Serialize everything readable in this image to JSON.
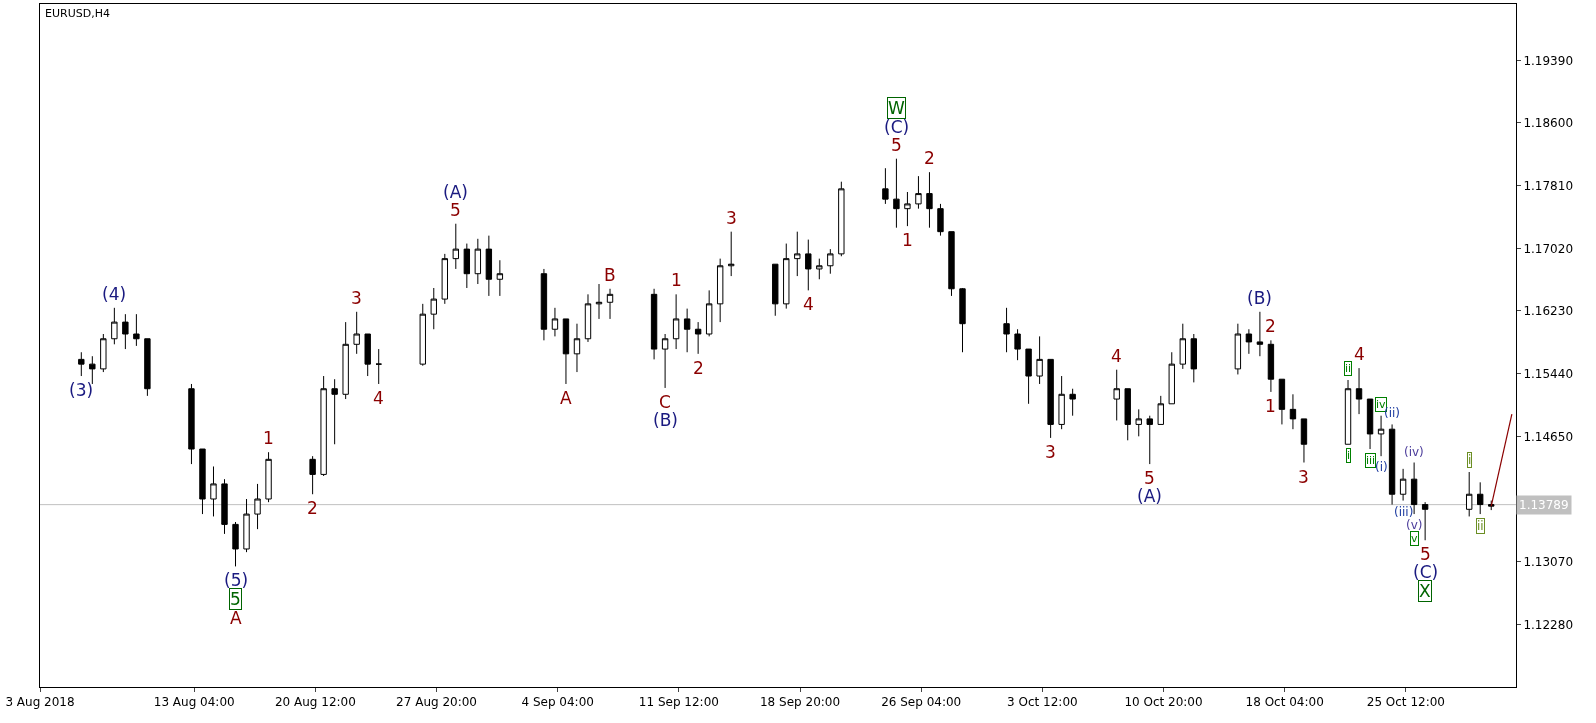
{
  "chart_data": {
    "type": "candlestick",
    "title": "EURUSD,H4",
    "x": [
      "2018-08-06T08:00",
      "2018-08-07T00:00",
      "2018-08-07T16:00",
      "2018-08-08T08:00",
      "2018-08-09T00:00",
      "2018-08-09T16:00",
      "2018-08-10T08:00",
      "2018-08-13T00:00",
      "2018-08-13T16:00",
      "2018-08-14T08:00",
      "2018-08-15T00:00",
      "2018-08-15T16:00",
      "2018-08-16T08:00",
      "2018-08-17T00:00",
      "2018-08-17T16:00",
      "2018-08-20T08:00",
      "2018-08-21T00:00",
      "2018-08-21T16:00",
      "2018-08-22T08:00",
      "2018-08-23T00:00",
      "2018-08-23T16:00",
      "2018-08-24T08:00",
      "2018-08-27T00:00",
      "2018-08-27T16:00",
      "2018-08-28T08:00",
      "2018-08-29T00:00",
      "2018-08-29T16:00",
      "2018-08-30T08:00",
      "2018-08-31T00:00",
      "2018-08-31T16:00",
      "2018-09-03T08:00",
      "2018-09-04T00:00",
      "2018-09-04T16:00",
      "2018-09-05T08:00",
      "2018-09-06T00:00",
      "2018-09-06T16:00",
      "2018-09-07T08:00",
      "2018-09-10T00:00",
      "2018-09-10T16:00",
      "2018-09-11T08:00",
      "2018-09-12T00:00",
      "2018-09-12T16:00",
      "2018-09-13T08:00",
      "2018-09-14T00:00",
      "2018-09-14T16:00",
      "2018-09-17T08:00",
      "2018-09-18T00:00",
      "2018-09-18T16:00",
      "2018-09-19T08:00",
      "2018-09-20T00:00",
      "2018-09-20T16:00",
      "2018-09-21T08:00",
      "2018-09-24T00:00",
      "2018-09-24T16:00",
      "2018-09-25T08:00",
      "2018-09-26T00:00",
      "2018-09-26T16:00",
      "2018-09-27T08:00",
      "2018-09-28T00:00",
      "2018-09-28T16:00",
      "2018-10-01T08:00",
      "2018-10-02T00:00",
      "2018-10-02T16:00",
      "2018-10-03T08:00",
      "2018-10-04T00:00",
      "2018-10-04T16:00",
      "2018-10-05T08:00",
      "2018-10-08T00:00",
      "2018-10-08T16:00",
      "2018-10-09T08:00",
      "2018-10-10T00:00",
      "2018-10-10T16:00",
      "2018-10-11T08:00",
      "2018-10-12T00:00",
      "2018-10-12T16:00",
      "2018-10-15T08:00",
      "2018-10-16T00:00",
      "2018-10-16T16:00",
      "2018-10-17T08:00",
      "2018-10-18T00:00",
      "2018-10-18T16:00",
      "2018-10-19T08:00",
      "2018-10-22T00:00",
      "2018-10-22T16:00",
      "2018-10-23T08:00",
      "2018-10-24T00:00",
      "2018-10-24T16:00",
      "2018-10-25T08:00",
      "2018-10-26T00:00",
      "2018-10-26T16:00",
      "2018-10-29T08:00",
      "2018-10-30T00:00",
      "2018-10-30T16:00"
    ],
    "ohlc": [
      [
        1.1562,
        1.1571,
        1.1541,
        1.1556
      ],
      [
        1.1556,
        1.1566,
        1.1531,
        1.155
      ],
      [
        1.155,
        1.1594,
        1.1546,
        1.1588
      ],
      [
        1.1588,
        1.1627,
        1.1581,
        1.1609
      ],
      [
        1.1609,
        1.1619,
        1.1575,
        1.1594
      ],
      [
        1.1594,
        1.1619,
        1.1579,
        1.1588
      ],
      [
        1.1588,
        1.1588,
        1.1516,
        1.1525
      ],
      [
        1.1525,
        1.1531,
        1.143,
        1.1449
      ],
      [
        1.1449,
        1.1449,
        1.1367,
        1.1386
      ],
      [
        1.1386,
        1.1427,
        1.1364,
        1.1405
      ],
      [
        1.1405,
        1.1411,
        1.1342,
        1.1354
      ],
      [
        1.1354,
        1.1357,
        1.1301,
        1.1323
      ],
      [
        1.1323,
        1.1386,
        1.1319,
        1.1367
      ],
      [
        1.1367,
        1.1405,
        1.1348,
        1.1386
      ],
      [
        1.1386,
        1.1445,
        1.1382,
        1.1436
      ],
      [
        1.1436,
        1.144,
        1.1392,
        1.1417
      ],
      [
        1.1417,
        1.1541,
        1.1415,
        1.1525
      ],
      [
        1.1525,
        1.1537,
        1.1455,
        1.1518
      ],
      [
        1.1518,
        1.1609,
        1.1512,
        1.1581
      ],
      [
        1.1581,
        1.1622,
        1.1569,
        1.1594
      ],
      [
        1.1594,
        1.1594,
        1.1541,
        1.1556
      ],
      [
        1.1556,
        1.1575,
        1.1531,
        1.1556
      ],
      [
        1.1556,
        1.1632,
        1.1554,
        1.1619
      ],
      [
        1.1619,
        1.1652,
        1.16,
        1.1638
      ],
      [
        1.1638,
        1.1695,
        1.1632,
        1.1689
      ],
      [
        1.1689,
        1.1733,
        1.1676,
        1.1701
      ],
      [
        1.1701,
        1.1708,
        1.1652,
        1.167
      ],
      [
        1.167,
        1.1714,
        1.1657,
        1.1701
      ],
      [
        1.1701,
        1.1718,
        1.1642,
        1.1663
      ],
      [
        1.1663,
        1.1687,
        1.1642,
        1.167
      ],
      [
        1.167,
        1.1676,
        1.1586,
        1.16
      ],
      [
        1.16,
        1.1627,
        1.1591,
        1.1613
      ],
      [
        1.1613,
        1.1613,
        1.1531,
        1.1569
      ],
      [
        1.1569,
        1.1607,
        1.1546,
        1.1588
      ],
      [
        1.1588,
        1.1644,
        1.1584,
        1.1632
      ],
      [
        1.1632,
        1.1657,
        1.1613,
        1.1634
      ],
      [
        1.1634,
        1.1651,
        1.1613,
        1.1644
      ],
      [
        1.1644,
        1.1651,
        1.1562,
        1.1575
      ],
      [
        1.1575,
        1.1594,
        1.1526,
        1.1588
      ],
      [
        1.1588,
        1.1644,
        1.1575,
        1.1613
      ],
      [
        1.1613,
        1.1626,
        1.1571,
        1.16
      ],
      [
        1.16,
        1.1609,
        1.1569,
        1.1594
      ],
      [
        1.1594,
        1.1649,
        1.1591,
        1.1632
      ],
      [
        1.1632,
        1.1689,
        1.1609,
        1.168
      ],
      [
        1.168,
        1.1723,
        1.1667,
        1.1682
      ],
      [
        1.1682,
        1.1682,
        1.1617,
        1.1632
      ],
      [
        1.1632,
        1.1708,
        1.1626,
        1.1689
      ],
      [
        1.1689,
        1.1723,
        1.1667,
        1.1695
      ],
      [
        1.1695,
        1.1713,
        1.1649,
        1.1676
      ],
      [
        1.1676,
        1.1689,
        1.1663,
        1.168
      ],
      [
        1.168,
        1.1701,
        1.167,
        1.1695
      ],
      [
        1.1695,
        1.1786,
        1.1692,
        1.1777
      ],
      [
        1.1777,
        1.1803,
        1.1758,
        1.1764
      ],
      [
        1.1764,
        1.1815,
        1.1728,
        1.1752
      ],
      [
        1.1752,
        1.1773,
        1.173,
        1.1758
      ],
      [
        1.1758,
        1.1793,
        1.1752,
        1.1771
      ],
      [
        1.1771,
        1.1798,
        1.1728,
        1.1752
      ],
      [
        1.1752,
        1.1758,
        1.1718,
        1.1723
      ],
      [
        1.1723,
        1.1723,
        1.1642,
        1.1651
      ],
      [
        1.1651,
        1.1652,
        1.1571,
        1.1607
      ],
      [
        1.1607,
        1.1627,
        1.1571,
        1.1594
      ],
      [
        1.1594,
        1.16,
        1.1561,
        1.1575
      ],
      [
        1.1575,
        1.1575,
        1.1506,
        1.1541
      ],
      [
        1.1541,
        1.1591,
        1.1531,
        1.1562
      ],
      [
        1.1562,
        1.1562,
        1.1463,
        1.148
      ],
      [
        1.148,
        1.1541,
        1.1474,
        1.1518
      ],
      [
        1.1518,
        1.1525,
        1.1491,
        1.1512
      ],
      [
        1.1512,
        1.1549,
        1.1485,
        1.1525
      ],
      [
        1.1525,
        1.1525,
        1.146,
        1.148
      ],
      [
        1.148,
        1.1499,
        1.1465,
        1.1487
      ],
      [
        1.1487,
        1.1491,
        1.143,
        1.148
      ],
      [
        1.148,
        1.1516,
        1.148,
        1.1506
      ],
      [
        1.1506,
        1.1571,
        1.1506,
        1.1556
      ],
      [
        1.1556,
        1.1607,
        1.155,
        1.1588
      ],
      [
        1.1588,
        1.1594,
        1.1533,
        1.155
      ],
      [
        1.155,
        1.1607,
        1.1543,
        1.1594
      ],
      [
        1.1594,
        1.16,
        1.1569,
        1.1584
      ],
      [
        1.1584,
        1.1622,
        1.1566,
        1.1581
      ],
      [
        1.1581,
        1.1586,
        1.1521,
        1.1537
      ],
      [
        1.1537,
        1.1537,
        1.148,
        1.1499
      ],
      [
        1.1499,
        1.1518,
        1.1474,
        1.1487
      ],
      [
        1.1487,
        1.1487,
        1.1432,
        1.1455
      ],
      [
        1.1455,
        1.1536,
        1.1455,
        1.1525
      ],
      [
        1.1525,
        1.1551,
        1.1493,
        1.1512
      ],
      [
        1.1512,
        1.1512,
        1.1449,
        1.1468
      ],
      [
        1.1468,
        1.1491,
        1.144,
        1.1474
      ],
      [
        1.1474,
        1.148,
        1.1379,
        1.1392
      ],
      [
        1.1392,
        1.1424,
        1.1384,
        1.1411
      ],
      [
        1.1411,
        1.1432,
        1.1367,
        1.1379
      ],
      [
        1.1379,
        1.1382,
        1.1334,
        1.1373
      ],
      [
        1.1373,
        1.142,
        1.1364,
        1.1392
      ],
      [
        1.1392,
        1.1407,
        1.1367,
        1.1379
      ],
      [
        1.1379,
        1.1384,
        1.1372,
        1.1377
      ]
    ],
    "color": "#000000",
    "series": [
      {
        "type": "line",
        "color": "#8b0000",
        "x": [
          "2018-10-30T16:00",
          "2018-10-31T22:00"
        ],
        "values": [
          1.1377,
          1.1493
        ]
      }
    ],
    "xlim": [
      "2018-08-03T20:00",
      "2018-11-01T04:00"
    ],
    "xticks": [
      {
        "value": "2018-08-03T20:00",
        "label": "3 Aug 2018"
      },
      {
        "value": "2018-08-13T04:00",
        "label": "13 Aug 04:00"
      },
      {
        "value": "2018-08-20T12:00",
        "label": "20 Aug 12:00"
      },
      {
        "value": "2018-08-27T20:00",
        "label": "27 Aug 20:00"
      },
      {
        "value": "2018-09-04T04:00",
        "label": "4 Sep 04:00"
      },
      {
        "value": "2018-09-11T12:00",
        "label": "11 Sep 12:00"
      },
      {
        "value": "2018-09-18T20:00",
        "label": "18 Sep 20:00"
      },
      {
        "value": "2018-09-26T04:00",
        "label": "26 Sep 04:00"
      },
      {
        "value": "2018-10-03T12:00",
        "label": "3 Oct 12:00"
      },
      {
        "value": "2018-10-10T20:00",
        "label": "10 Oct 20:00"
      },
      {
        "value": "2018-10-18T04:00",
        "label": "18 Oct 04:00"
      },
      {
        "value": "2018-10-25T12:00",
        "label": "25 Oct 12:00"
      }
    ],
    "ylim": [
      1.1149,
      1.201
    ],
    "yticks": [
      {
        "value": 1.1228,
        "label": "1.12280"
      },
      {
        "value": 1.1307,
        "label": "1.13070"
      },
      {
        "value": 1.1386,
        "label": null
      },
      {
        "value": 1.1465,
        "label": "1.14650"
      },
      {
        "value": 1.1544,
        "label": "1.15440"
      },
      {
        "value": 1.1623,
        "label": "1.16230"
      },
      {
        "value": 1.1702,
        "label": "1.17020"
      },
      {
        "value": 1.1781,
        "label": "1.17810"
      },
      {
        "value": 1.186,
        "label": "1.18600"
      },
      {
        "value": 1.1939,
        "label": "1.19390"
      }
    ],
    "ref_lines": [
      {
        "axis": "y",
        "value": 1.13789,
        "label": "1.13789",
        "color": "#c0c0c0"
      }
    ],
    "annotations": [
      {
        "text": "1",
        "x": "2018-08-17T16:00",
        "y": 1.1445
      },
      {
        "text": "2",
        "x": "2018-08-20T08:00",
        "y": 1.1392
      },
      {
        "text": "(5)",
        "x": "2018-08-15T16:00",
        "y": 1.1301
      },
      {
        "text": "5",
        "x": "2018-08-15T16:00",
        "y": 1.1301
      },
      {
        "text": "A",
        "x": "2018-08-15T16:00",
        "y": 1.1301
      },
      {
        "text": "3",
        "x": "2018-08-23T00:00",
        "y": 1.1622
      },
      {
        "text": "4",
        "x": "2018-08-24T08:00",
        "y": 1.1531
      },
      {
        "text": "5",
        "x": "2018-08-29T00:00",
        "y": 1.1733
      },
      {
        "text": "(A)",
        "x": "2018-08-29T00:00",
        "y": 1.1733
      },
      {
        "text": "A",
        "x": "2018-09-04T16:00",
        "y": 1.1531
      },
      {
        "text": "B",
        "x": "2018-09-07T08:00",
        "y": 1.1651
      },
      {
        "text": "1",
        "x": "2018-09-11T08:00",
        "y": 1.1644
      },
      {
        "text": "C",
        "x": "2018-09-10T16:00",
        "y": 1.1526
      },
      {
        "text": "(B)",
        "x": "2018-09-10T16:00",
        "y": 1.1526
      },
      {
        "text": "2",
        "x": "2018-09-12T16:00",
        "y": 1.1569
      },
      {
        "text": "3",
        "x": "2018-09-14T16:00",
        "y": 1.1723
      },
      {
        "text": "4",
        "x": "2018-09-19T08:00",
        "y": 1.1649
      },
      {
        "text": "5",
        "x": "2018-09-24T16:00",
        "y": 1.1815
      },
      {
        "text": "(C)",
        "x": "2018-09-24T16:00",
        "y": 1.1815
      },
      {
        "text": "W",
        "x": "2018-09-24T16:00",
        "y": 1.1815
      },
      {
        "text": "2",
        "x": "2018-09-26T16:00",
        "y": 1.1798
      },
      {
        "text": "1",
        "x": "2018-09-25T08:00",
        "y": 1.173
      },
      {
        "text": "3",
        "x": "2018-10-04T00:00",
        "y": 1.1463
      },
      {
        "text": "4",
        "x": "2018-10-08T00:00",
        "y": 1.1549
      },
      {
        "text": "5",
        "x": "2018-10-10T00:00",
        "y": 1.143
      },
      {
        "text": "(A)",
        "x": "2018-10-10T00:00",
        "y": 1.143
      },
      {
        "text": "(B)",
        "x": "2018-10-16T16:00",
        "y": 1.1622
      },
      {
        "text": "2",
        "x": "2018-10-17T08:00",
        "y": 1.1586
      },
      {
        "text": "1",
        "x": "2018-10-17T08:00",
        "y": 1.1521
      },
      {
        "text": "3",
        "x": "2018-10-19T08:00",
        "y": 1.1432
      },
      {
        "text": "4",
        "x": "2018-10-22T16:00",
        "y": 1.1551
      },
      {
        "text": "ii",
        "x": "2018-10-22T00:00",
        "y": 1.1536
      },
      {
        "text": "i",
        "x": "2018-10-22T00:00",
        "y": 1.1455
      },
      {
        "text": "iii",
        "x": "2018-10-23T08:00",
        "y": 1.1449
      },
      {
        "text": "iv",
        "x": "2018-10-24T00:00",
        "y": 1.1491
      },
      {
        "text": "(ii)",
        "x": "2018-10-24T16:00",
        "y": 1.148
      },
      {
        "text": "(i)",
        "x": "2018-10-24T00:00",
        "y": 1.144
      },
      {
        "text": "(iii)",
        "x": "2018-10-25T08:00",
        "y": 1.1384
      },
      {
        "text": "(iv)",
        "x": "2018-10-26T00:00",
        "y": 1.1432
      },
      {
        "text": "i",
        "x": "2018-10-29T08:00",
        "y": 1.142
      },
      {
        "text": "ii",
        "x": "2018-10-30T00:00",
        "y": 1.1367
      },
      {
        "text": "(v)",
        "x": "2018-10-26T00:00",
        "y": 1.1367
      },
      {
        "text": "v",
        "x": "2018-10-26T00:00",
        "y": 1.1367
      },
      {
        "text": "5",
        "x": "2018-10-26T16:00",
        "y": 1.1334
      },
      {
        "text": "(C)",
        "x": "2018-10-26T16:00",
        "y": 1.1334
      },
      {
        "text": "X",
        "x": "2018-10-26T16:00",
        "y": 1.1334
      },
      {
        "text": "(3)",
        "x": "2018-08-06T08:00",
        "y": 1.1541
      },
      {
        "text": "(4)",
        "x": "2018-08-08T08:00",
        "y": 1.1627
      }
    ]
  }
}
